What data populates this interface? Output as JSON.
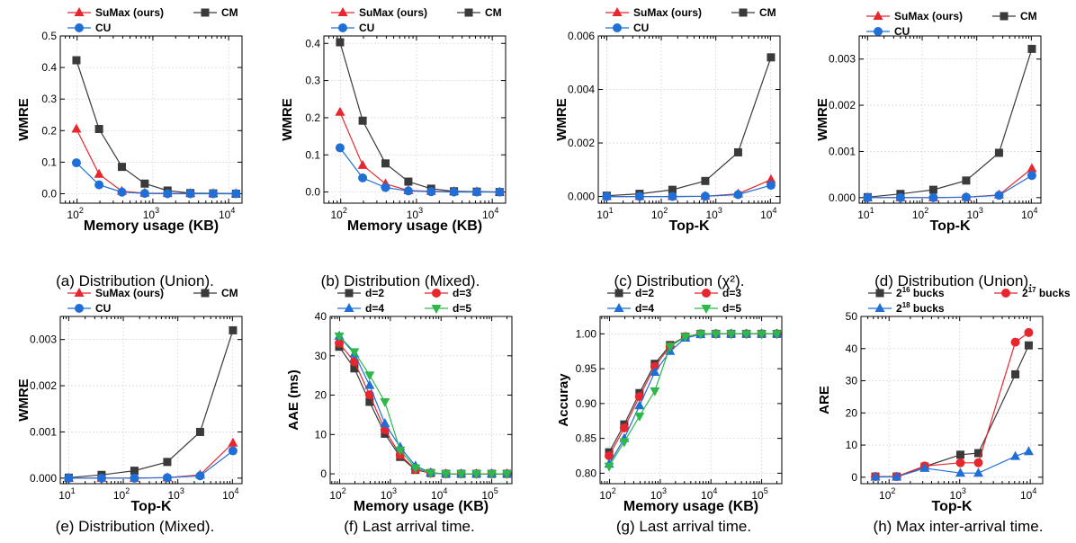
{
  "colors": {
    "sumax": "#e8262d",
    "cm": "#3a3a3a",
    "cu": "#1f6fd6",
    "d2": "#3a3a3a",
    "d3": "#e8262d",
    "d4": "#1f6fd6",
    "d5": "#2db84a"
  },
  "chart_data": [
    {
      "type": "line",
      "caption": "(a) Distribution (Union).",
      "xlabel": "Memory usage (KB)",
      "ylabel": "WMRE",
      "xscale": "log",
      "xlim": [
        60,
        15000
      ],
      "ylim": [
        -0.03,
        0.5
      ],
      "yticks": [
        "0.0",
        "0.1",
        "0.2",
        "0.3",
        "0.4",
        "0.5"
      ],
      "ytickvals": [
        0,
        0.1,
        0.2,
        0.3,
        0.4,
        0.5
      ],
      "x": [
        98,
        195,
        390,
        781,
        1562,
        3125,
        6250,
        12500
      ],
      "legend": [
        {
          "name": "SuMax (ours)",
          "key": "sumax",
          "marker": "tri"
        },
        {
          "name": "CM",
          "key": "cm",
          "marker": "sq"
        },
        {
          "name": "CU",
          "key": "cu",
          "marker": "circ"
        }
      ],
      "series": [
        {
          "name": "SuMax (ours)",
          "key": "sumax",
          "marker": "tri",
          "values": [
            0.205,
            0.062,
            0.008,
            0.002,
            0.001,
            0.001,
            0.001,
            0.0
          ]
        },
        {
          "name": "CM",
          "key": "cm",
          "marker": "sq",
          "values": [
            0.423,
            0.205,
            0.085,
            0.032,
            0.01,
            0.002,
            0.001,
            0.0
          ]
        },
        {
          "name": "CU",
          "key": "cu",
          "marker": "circ",
          "values": [
            0.098,
            0.028,
            0.005,
            0.001,
            0.0,
            0.0,
            0.0,
            0.0
          ]
        }
      ]
    },
    {
      "type": "line",
      "caption": "(b) Distribution (Mixed).",
      "xlabel": "Memory usage (KB)",
      "ylabel": "WMRE",
      "xscale": "log",
      "xlim": [
        60,
        15000
      ],
      "ylim": [
        -0.03,
        0.42
      ],
      "yticks": [
        "0.0",
        "0.1",
        "0.2",
        "0.3",
        "0.4"
      ],
      "ytickvals": [
        0,
        0.1,
        0.2,
        0.3,
        0.4
      ],
      "x": [
        98,
        195,
        390,
        781,
        1562,
        3125,
        6250,
        12500
      ],
      "legend": [
        {
          "name": "SuMax (ours)",
          "key": "sumax",
          "marker": "tri"
        },
        {
          "name": "CM",
          "key": "cm",
          "marker": "sq"
        },
        {
          "name": "CU",
          "key": "cu",
          "marker": "circ"
        }
      ],
      "series": [
        {
          "name": "SuMax (ours)",
          "key": "sumax",
          "marker": "tri",
          "values": [
            0.215,
            0.072,
            0.022,
            0.004,
            0.002,
            0.001,
            0.001,
            0.0
          ]
        },
        {
          "name": "CM",
          "key": "cm",
          "marker": "sq",
          "values": [
            0.403,
            0.192,
            0.077,
            0.028,
            0.009,
            0.002,
            0.001,
            0.0
          ]
        },
        {
          "name": "CU",
          "key": "cu",
          "marker": "circ",
          "values": [
            0.119,
            0.038,
            0.012,
            0.003,
            0.001,
            0.0,
            0.0,
            0.0
          ]
        }
      ]
    },
    {
      "type": "line",
      "caption": "(c) Distribution (χ²).",
      "xlabel": "Top-K",
      "ylabel": "WMRE",
      "xscale": "log",
      "xlim": [
        7,
        15000
      ],
      "ylim": [
        -0.00025,
        0.006
      ],
      "yticks": [
        "0.000",
        "0.002",
        "0.004",
        "0.006"
      ],
      "ytickvals": [
        0,
        0.002,
        0.004,
        0.006
      ],
      "x": [
        10,
        40,
        160,
        640,
        2560,
        10240
      ],
      "legend": [
        {
          "name": "SuMax (ours)",
          "key": "sumax",
          "marker": "tri"
        },
        {
          "name": "CM",
          "key": "cm",
          "marker": "sq"
        },
        {
          "name": "CU",
          "key": "cu",
          "marker": "circ"
        }
      ],
      "series": [
        {
          "name": "SuMax (ours)",
          "key": "sumax",
          "marker": "tri",
          "values": [
            0.0,
            0.0,
            0.0,
            1e-05,
            0.0001,
            0.00063
          ]
        },
        {
          "name": "CM",
          "key": "cm",
          "marker": "sq",
          "values": [
            3e-05,
            0.0001,
            0.00025,
            0.00058,
            0.00165,
            0.0052
          ]
        },
        {
          "name": "CU",
          "key": "cu",
          "marker": "circ",
          "values": [
            0.0,
            0.0,
            0.0,
            1e-05,
            7e-05,
            0.00042
          ]
        }
      ]
    },
    {
      "type": "line",
      "caption": "(d) Distribution (Union).",
      "xlabel": "Top-K",
      "ylabel": "WMRE",
      "xscale": "log",
      "xlim": [
        7,
        15000
      ],
      "ylim": [
        -0.00012,
        0.0035
      ],
      "yticks": [
        "0.000",
        "0.001",
        "0.002",
        "0.003"
      ],
      "ytickvals": [
        0,
        0.001,
        0.002,
        0.003
      ],
      "x": [
        10,
        40,
        160,
        640,
        2560,
        10240
      ],
      "legend": [
        {
          "name": "SuMax (ours)",
          "key": "sumax",
          "marker": "tri"
        },
        {
          "name": "CM",
          "key": "cm",
          "marker": "sq"
        },
        {
          "name": "CU",
          "key": "cu",
          "marker": "circ"
        }
      ],
      "series": [
        {
          "name": "SuMax (ours)",
          "key": "sumax",
          "marker": "tri",
          "values": [
            0.0,
            0.0,
            0.0,
            1e-05,
            6e-05,
            0.00063
          ]
        },
        {
          "name": "CM",
          "key": "cm",
          "marker": "sq",
          "values": [
            1e-05,
            8e-05,
            0.00017,
            0.00037,
            0.00097,
            0.00322
          ]
        },
        {
          "name": "CU",
          "key": "cu",
          "marker": "circ",
          "values": [
            0.0,
            0.0,
            0.0,
            1e-05,
            5e-05,
            0.00048
          ]
        }
      ]
    },
    {
      "type": "line",
      "caption": "(e) Distribution (Mixed).",
      "xlabel": "Top-K",
      "ylabel": "WMRE",
      "xscale": "log",
      "xlim": [
        7,
        15000
      ],
      "ylim": [
        -0.00012,
        0.0035
      ],
      "yticks": [
        "0.000",
        "0.001",
        "0.002",
        "0.003"
      ],
      "ytickvals": [
        0,
        0.001,
        0.002,
        0.003
      ],
      "x": [
        10,
        40,
        160,
        640,
        2560,
        10240
      ],
      "legend": [
        {
          "name": "SuMax (ours)",
          "key": "sumax",
          "marker": "tri"
        },
        {
          "name": "CM",
          "key": "cm",
          "marker": "sq"
        },
        {
          "name": "CU",
          "key": "cu",
          "marker": "circ"
        }
      ],
      "series": [
        {
          "name": "SuMax (ours)",
          "key": "sumax",
          "marker": "tri",
          "values": [
            0.0,
            0.0,
            0.0,
            1e-05,
            7e-05,
            0.00076
          ]
        },
        {
          "name": "CM",
          "key": "cm",
          "marker": "sq",
          "values": [
            1e-05,
            7e-05,
            0.00016,
            0.00035,
            0.001,
            0.0032
          ]
        },
        {
          "name": "CU",
          "key": "cu",
          "marker": "circ",
          "values": [
            0.0,
            0.0,
            0.0,
            1e-05,
            5e-05,
            0.00059
          ]
        }
      ]
    },
    {
      "type": "line",
      "caption": "(f) Last arrival time.",
      "xlabel": "Memory usage (KB)",
      "ylabel": "AAE (ms)",
      "xscale": "log",
      "xlim": [
        65,
        250000
      ],
      "ylim": [
        -2.5,
        40
      ],
      "yticks": [
        "0",
        "10",
        "20",
        "30",
        "40"
      ],
      "ytickvals": [
        0,
        10,
        20,
        30,
        40
      ],
      "x": [
        98,
        195,
        390,
        781,
        1562,
        3125,
        6250,
        12500,
        25000,
        50000,
        100000,
        200000
      ],
      "legend": [
        {
          "name": "d=2",
          "key": "d2",
          "marker": "sq"
        },
        {
          "name": "d=3",
          "key": "d3",
          "marker": "circ"
        },
        {
          "name": "d=4",
          "key": "d4",
          "marker": "tri"
        },
        {
          "name": "d=5",
          "key": "d5",
          "marker": "tri-down"
        }
      ],
      "series": [
        {
          "name": "d=2",
          "key": "d2",
          "marker": "sq",
          "values": [
            32.3,
            26.8,
            18.3,
            10.2,
            4.3,
            1.0,
            0.2,
            0.0,
            0.0,
            0.0,
            0.0,
            0.0
          ]
        },
        {
          "name": "d=3",
          "key": "d3",
          "marker": "circ",
          "values": [
            33.2,
            28.5,
            20.1,
            11.2,
            4.8,
            1.1,
            0.2,
            0.0,
            0.0,
            0.0,
            0.0,
            0.0
          ]
        },
        {
          "name": "d=4",
          "key": "d4",
          "marker": "tri",
          "values": [
            35.0,
            30.5,
            22.5,
            12.8,
            6.8,
            2.0,
            0.3,
            0.0,
            0.0,
            0.0,
            0.0,
            0.0
          ]
        },
        {
          "name": "d=5",
          "key": "d5",
          "marker": "tri-down",
          "values": [
            35.0,
            31.0,
            25.1,
            18.3,
            6.0,
            1.5,
            0.2,
            0.0,
            0.0,
            0.0,
            0.0,
            0.0
          ]
        }
      ]
    },
    {
      "type": "line",
      "caption": "(g) Last arrival time.",
      "xlabel": "Memory usage (KB)",
      "ylabel": "Accuray",
      "xscale": "log",
      "xlim": [
        65,
        250000
      ],
      "ylim": [
        0.785,
        1.025
      ],
      "yticks": [
        "0.80",
        "0.85",
        "0.90",
        "0.95",
        "1.00"
      ],
      "ytickvals": [
        0.8,
        0.85,
        0.9,
        0.95,
        1.0
      ],
      "x": [
        98,
        195,
        390,
        781,
        1562,
        3125,
        6250,
        12500,
        25000,
        50000,
        100000,
        200000
      ],
      "legend": [
        {
          "name": "d=2",
          "key": "d2",
          "marker": "sq"
        },
        {
          "name": "d=3",
          "key": "d3",
          "marker": "circ"
        },
        {
          "name": "d=4",
          "key": "d4",
          "marker": "tri"
        },
        {
          "name": "d=5",
          "key": "d5",
          "marker": "tri-down"
        }
      ],
      "series": [
        {
          "name": "d=2",
          "key": "d2",
          "marker": "sq",
          "values": [
            0.83,
            0.87,
            0.915,
            0.957,
            0.984,
            0.996,
            1.0,
            1.0,
            1.0,
            1.0,
            1.0,
            1.0
          ]
        },
        {
          "name": "d=3",
          "key": "d3",
          "marker": "circ",
          "values": [
            0.825,
            0.865,
            0.91,
            0.953,
            0.982,
            0.996,
            1.0,
            1.0,
            1.0,
            1.0,
            1.0,
            1.0
          ]
        },
        {
          "name": "d=4",
          "key": "d4",
          "marker": "tri",
          "values": [
            0.813,
            0.85,
            0.897,
            0.945,
            0.975,
            0.994,
            0.999,
            1.0,
            1.0,
            1.0,
            1.0,
            1.0
          ]
        },
        {
          "name": "d=5",
          "key": "d5",
          "marker": "tri-down",
          "values": [
            0.81,
            0.845,
            0.882,
            0.918,
            0.982,
            0.996,
            1.0,
            1.0,
            1.0,
            1.0,
            1.0,
            1.0
          ]
        }
      ]
    },
    {
      "type": "line",
      "caption": "(h) Max inter-arrival time.",
      "xlabel": "Top-K",
      "ylabel": "ARE",
      "xscale": "log",
      "xlim": [
        40,
        15000
      ],
      "ylim": [
        -2,
        50
      ],
      "yticks": [
        "0",
        "10",
        "20",
        "30",
        "40",
        "50"
      ],
      "ytickvals": [
        0,
        10,
        20,
        30,
        40,
        50
      ],
      "x": [
        64,
        128,
        320,
        1024,
        1840,
        6144,
        9500
      ],
      "legend": [
        {
          "name": "2",
          "sup": "16",
          "suffix": " bucks",
          "key": "d2",
          "marker": "sq"
        },
        {
          "name": "2",
          "sup": "17",
          "suffix": " bucks",
          "key": "d3",
          "marker": "circ"
        },
        {
          "name": "2",
          "sup": "18",
          "suffix": " bucks",
          "key": "d4",
          "marker": "tri"
        }
      ],
      "series": [
        {
          "name": "2^16 bucks",
          "key": "d2",
          "marker": "sq",
          "values": [
            0.2,
            0.2,
            3.3,
            7.0,
            7.5,
            32.0,
            41.0
          ]
        },
        {
          "name": "2^17 bucks",
          "key": "d3",
          "marker": "circ",
          "values": [
            0.2,
            0.2,
            3.5,
            4.5,
            4.5,
            42.0,
            45.0
          ]
        },
        {
          "name": "2^18 bucks",
          "key": "d4",
          "marker": "tri",
          "values": [
            0.1,
            0.1,
            2.8,
            1.3,
            1.3,
            6.5,
            8.0
          ]
        }
      ]
    }
  ]
}
